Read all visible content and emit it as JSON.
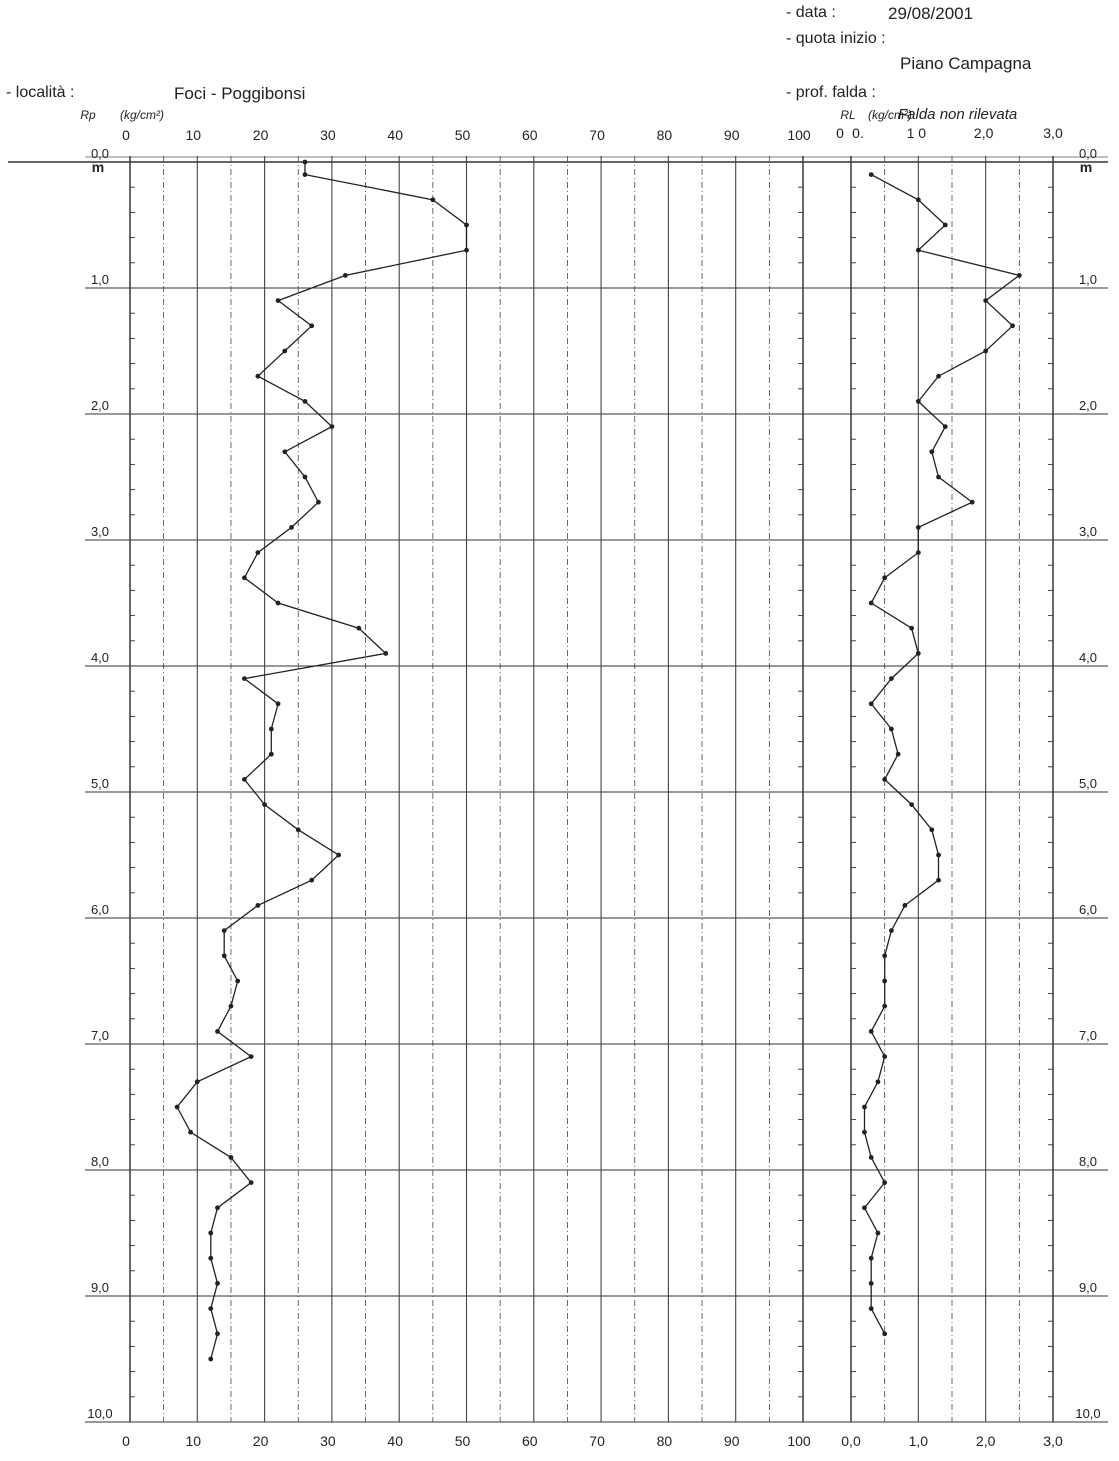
{
  "header": {
    "data_label": "- data :",
    "data_value": "29/08/2001",
    "quota_label": "- quota inizio :",
    "quota_value": "Piano Campagna",
    "localita_label": "- località   :",
    "localita_value": "Foci - Poggibonsi",
    "falda_label": "- prof. falda :",
    "falda_value": "Falda non rilevata"
  },
  "chart_data": [
    {
      "type": "line",
      "series_label": "Rp",
      "unit_label": "(kg/cm²)",
      "xlim": [
        0,
        100
      ],
      "ylim": [
        0,
        10
      ],
      "x_ticks": [
        "0",
        "10",
        "20",
        "30",
        "40",
        "50",
        "60",
        "70",
        "80",
        "90",
        "100"
      ],
      "depth_ticks": [
        "0,0",
        "1,0",
        "2,0",
        "3,0",
        "4,0",
        "5,0",
        "6,0",
        "7,0",
        "8,0",
        "9,0",
        "10,0"
      ],
      "depth_unit": "m",
      "grid": true,
      "points": [
        {
          "depth": 0.0,
          "value": 26
        },
        {
          "depth": 0.1,
          "value": 26
        },
        {
          "depth": 0.3,
          "value": 45
        },
        {
          "depth": 0.5,
          "value": 50
        },
        {
          "depth": 0.7,
          "value": 50
        },
        {
          "depth": 0.9,
          "value": 32
        },
        {
          "depth": 1.1,
          "value": 22
        },
        {
          "depth": 1.3,
          "value": 27
        },
        {
          "depth": 1.5,
          "value": 23
        },
        {
          "depth": 1.7,
          "value": 19
        },
        {
          "depth": 1.9,
          "value": 26
        },
        {
          "depth": 2.1,
          "value": 30
        },
        {
          "depth": 2.3,
          "value": 23
        },
        {
          "depth": 2.5,
          "value": 26
        },
        {
          "depth": 2.7,
          "value": 28
        },
        {
          "depth": 2.9,
          "value": 24
        },
        {
          "depth": 3.1,
          "value": 19
        },
        {
          "depth": 3.3,
          "value": 17
        },
        {
          "depth": 3.5,
          "value": 22
        },
        {
          "depth": 3.7,
          "value": 34
        },
        {
          "depth": 3.9,
          "value": 38
        },
        {
          "depth": 4.1,
          "value": 17
        },
        {
          "depth": 4.3,
          "value": 22
        },
        {
          "depth": 4.5,
          "value": 21
        },
        {
          "depth": 4.7,
          "value": 21
        },
        {
          "depth": 4.9,
          "value": 17
        },
        {
          "depth": 5.1,
          "value": 20
        },
        {
          "depth": 5.3,
          "value": 25
        },
        {
          "depth": 5.5,
          "value": 31
        },
        {
          "depth": 5.7,
          "value": 27
        },
        {
          "depth": 5.9,
          "value": 19
        },
        {
          "depth": 6.1,
          "value": 14
        },
        {
          "depth": 6.3,
          "value": 14
        },
        {
          "depth": 6.5,
          "value": 16
        },
        {
          "depth": 6.7,
          "value": 15
        },
        {
          "depth": 6.9,
          "value": 13
        },
        {
          "depth": 7.1,
          "value": 18
        },
        {
          "depth": 7.3,
          "value": 10
        },
        {
          "depth": 7.5,
          "value": 7
        },
        {
          "depth": 7.7,
          "value": 9
        },
        {
          "depth": 7.9,
          "value": 15
        },
        {
          "depth": 8.1,
          "value": 18
        },
        {
          "depth": 8.3,
          "value": 13
        },
        {
          "depth": 8.5,
          "value": 12
        },
        {
          "depth": 8.7,
          "value": 12
        },
        {
          "depth": 8.9,
          "value": 13
        },
        {
          "depth": 9.1,
          "value": 12
        },
        {
          "depth": 9.3,
          "value": 13
        },
        {
          "depth": 9.5,
          "value": 12
        }
      ]
    },
    {
      "type": "line",
      "series_label": "RL",
      "unit_label": "(kg/cm²)",
      "xlim": [
        0,
        3
      ],
      "ylim": [
        0,
        10
      ],
      "x_ticks": [
        "0,0",
        "1,0",
        "2,0",
        "3,0"
      ],
      "x_ticks_top": [
        "0",
        "0.",
        "1 0",
        "2,0",
        "3,0"
      ],
      "depth_ticks": [
        "0,0",
        "1,0",
        "2,0",
        "3,0",
        "4,0",
        "5,0",
        "6,0",
        "7,0",
        "8,0",
        "9,0",
        "10,0"
      ],
      "depth_unit": "m",
      "grid": true,
      "points": [
        {
          "depth": 0.1,
          "value": 0.3
        },
        {
          "depth": 0.3,
          "value": 1.0
        },
        {
          "depth": 0.5,
          "value": 1.4
        },
        {
          "depth": 0.7,
          "value": 1.0
        },
        {
          "depth": 0.9,
          "value": 2.5
        },
        {
          "depth": 1.1,
          "value": 2.0
        },
        {
          "depth": 1.3,
          "value": 2.4
        },
        {
          "depth": 1.5,
          "value": 2.0
        },
        {
          "depth": 1.7,
          "value": 1.3
        },
        {
          "depth": 1.9,
          "value": 1.0
        },
        {
          "depth": 2.1,
          "value": 1.4
        },
        {
          "depth": 2.3,
          "value": 1.2
        },
        {
          "depth": 2.5,
          "value": 1.3
        },
        {
          "depth": 2.7,
          "value": 1.8
        },
        {
          "depth": 2.9,
          "value": 1.0
        },
        {
          "depth": 3.1,
          "value": 1.0
        },
        {
          "depth": 3.3,
          "value": 0.5
        },
        {
          "depth": 3.5,
          "value": 0.3
        },
        {
          "depth": 3.7,
          "value": 0.9
        },
        {
          "depth": 3.9,
          "value": 1.0
        },
        {
          "depth": 4.1,
          "value": 0.6
        },
        {
          "depth": 4.3,
          "value": 0.3
        },
        {
          "depth": 4.5,
          "value": 0.6
        },
        {
          "depth": 4.7,
          "value": 0.7
        },
        {
          "depth": 4.9,
          "value": 0.5
        },
        {
          "depth": 5.1,
          "value": 0.9
        },
        {
          "depth": 5.3,
          "value": 1.2
        },
        {
          "depth": 5.5,
          "value": 1.3
        },
        {
          "depth": 5.7,
          "value": 1.3
        },
        {
          "depth": 5.9,
          "value": 0.8
        },
        {
          "depth": 6.1,
          "value": 0.6
        },
        {
          "depth": 6.3,
          "value": 0.5
        },
        {
          "depth": 6.5,
          "value": 0.5
        },
        {
          "depth": 6.7,
          "value": 0.5
        },
        {
          "depth": 6.9,
          "value": 0.3
        },
        {
          "depth": 7.1,
          "value": 0.5
        },
        {
          "depth": 7.3,
          "value": 0.4
        },
        {
          "depth": 7.5,
          "value": 0.2
        },
        {
          "depth": 7.7,
          "value": 0.2
        },
        {
          "depth": 7.9,
          "value": 0.3
        },
        {
          "depth": 8.1,
          "value": 0.5
        },
        {
          "depth": 8.3,
          "value": 0.2
        },
        {
          "depth": 8.5,
          "value": 0.4
        },
        {
          "depth": 8.7,
          "value": 0.3
        },
        {
          "depth": 8.9,
          "value": 0.3
        },
        {
          "depth": 9.1,
          "value": 0.3
        },
        {
          "depth": 9.3,
          "value": 0.5
        }
      ]
    }
  ]
}
